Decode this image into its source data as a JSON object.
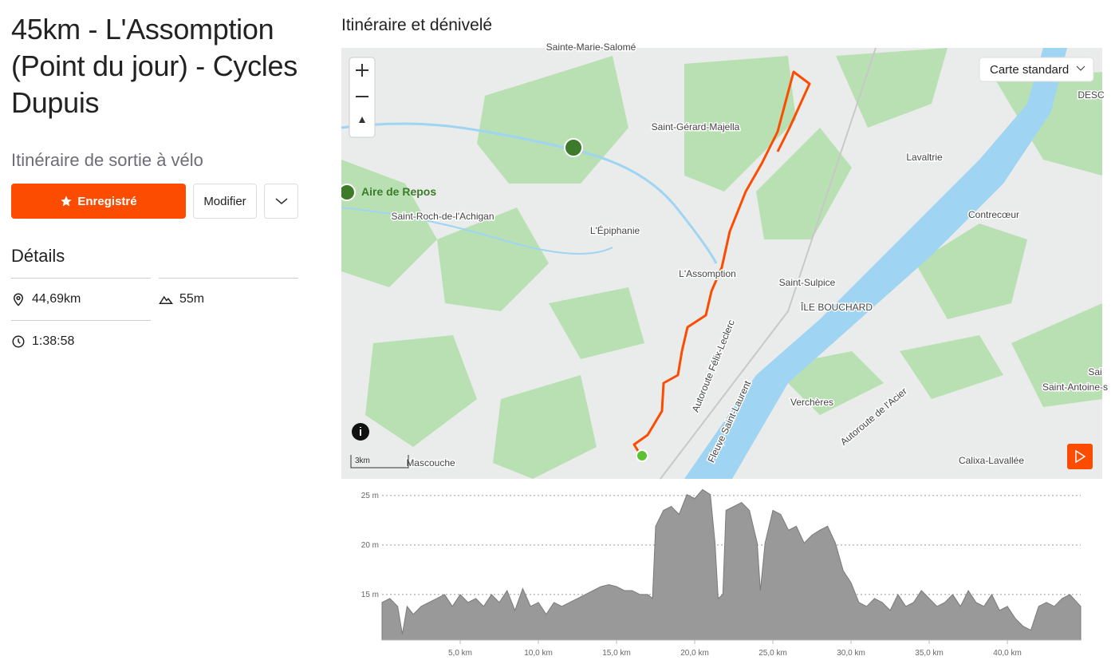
{
  "header": {
    "title": "45km - L'Assomption (Point du jour) - Cycles Dupuis",
    "subtitle": "Itinéraire de sortie à vélo"
  },
  "actions": {
    "save": "Enregistré",
    "edit": "Modifier"
  },
  "details": {
    "title": "Détails",
    "distance": "44,69km",
    "elevation": "55m",
    "time": "1:38:58"
  },
  "map": {
    "section_title": "Itinéraire et dénivelé",
    "style_selector": "Carte standard",
    "poi": "Aire de Repos",
    "scale": "3km",
    "labels": [
      "Sainte-Marie-Salomé",
      "Saint-Gérard-Majella",
      "Lavaltrie",
      "Contrecœur",
      "Saint-Roch-de-l'Achigan",
      "L'Épiphanie",
      "L'Assomption",
      "Saint-Sulpice",
      "ÎLE BOUCHARD",
      "Autoroute Félix-Leclerc",
      "Fleuve Saint-Laurent",
      "Verchères",
      "Autoroute de l'Acier",
      "Saint-Antoine-s",
      "Calixa-Lavallée",
      "Mascouche",
      "DESC",
      "Sai"
    ]
  },
  "chart_data": {
    "type": "area",
    "color": "#999999",
    "grid": true,
    "x": [
      0,
      0.5,
      1,
      1.3,
      1.6,
      2,
      2.5,
      3,
      3.5,
      4,
      4.5,
      5,
      5.5,
      6,
      6.5,
      7,
      7.5,
      8,
      8.5,
      9,
      9.5,
      10,
      10.5,
      11,
      11.5,
      12,
      12.5,
      13,
      13.5,
      14,
      14.5,
      15,
      15.5,
      16,
      16.5,
      17,
      17.3,
      17.5,
      18,
      18.5,
      19,
      19.5,
      20,
      20.5,
      21,
      21.3,
      21.5,
      21.8,
      22,
      22.5,
      23,
      23.5,
      24,
      24.2,
      24.5,
      25,
      25.5,
      26,
      26.5,
      27,
      27.5,
      28,
      28.5,
      29,
      29.5,
      30,
      30.5,
      31,
      31.5,
      32,
      32.5,
      33,
      33.5,
      34,
      34.5,
      35,
      35.5,
      36,
      36.5,
      37,
      37.5,
      38,
      38.5,
      39,
      39.5,
      40,
      40.5,
      41,
      41.5,
      42,
      42.5,
      43,
      43.5,
      44,
      44.69
    ],
    "values": [
      14.2,
      14.6,
      13.8,
      11.0,
      13.8,
      13.0,
      13.8,
      14.2,
      14.6,
      15.0,
      13.8,
      15.0,
      14.2,
      14.6,
      13.8,
      15.0,
      14.2,
      15.4,
      13.4,
      15.6,
      13.8,
      14.2,
      13.0,
      14.2,
      13.8,
      14.2,
      14.6,
      15.0,
      15.4,
      15.8,
      16.0,
      15.8,
      15.4,
      15.4,
      15.0,
      15.0,
      14.6,
      21.9,
      23.5,
      23.9,
      23.1,
      25.1,
      24.7,
      25.6,
      25.1,
      20.2,
      14.6,
      15.0,
      23.5,
      23.9,
      24.3,
      23.5,
      20.2,
      15.4,
      20.2,
      23.5,
      23.1,
      21.5,
      21.9,
      20.2,
      21.0,
      21.5,
      21.9,
      20.2,
      17.4,
      16.2,
      14.2,
      13.8,
      14.6,
      14.2,
      13.4,
      15.0,
      13.8,
      14.2,
      15.4,
      14.6,
      13.8,
      14.2,
      15.0,
      13.8,
      15.4,
      14.2,
      13.8,
      15.0,
      13.4,
      13.8,
      12.6,
      11.8,
      11.4,
      13.8,
      14.2,
      13.8,
      14.6,
      15.0,
      13.8
    ],
    "xlim": [
      0,
      44.69
    ],
    "ylim": [
      10.4,
      26.2
    ],
    "yticks": [
      {
        "value": 15,
        "label": "15 m"
      },
      {
        "value": 20,
        "label": "20 m"
      },
      {
        "value": 25,
        "label": "25 m"
      }
    ],
    "xticks": [
      {
        "value": 5,
        "label": "5,0 km"
      },
      {
        "value": 10,
        "label": "10,0 km"
      },
      {
        "value": 15,
        "label": "15,0 km"
      },
      {
        "value": 20,
        "label": "20,0 km"
      },
      {
        "value": 25,
        "label": "25,0 km"
      },
      {
        "value": 30,
        "label": "30,0 km"
      },
      {
        "value": 35,
        "label": "35,0 km"
      },
      {
        "value": 40,
        "label": "40,0 km"
      }
    ]
  }
}
